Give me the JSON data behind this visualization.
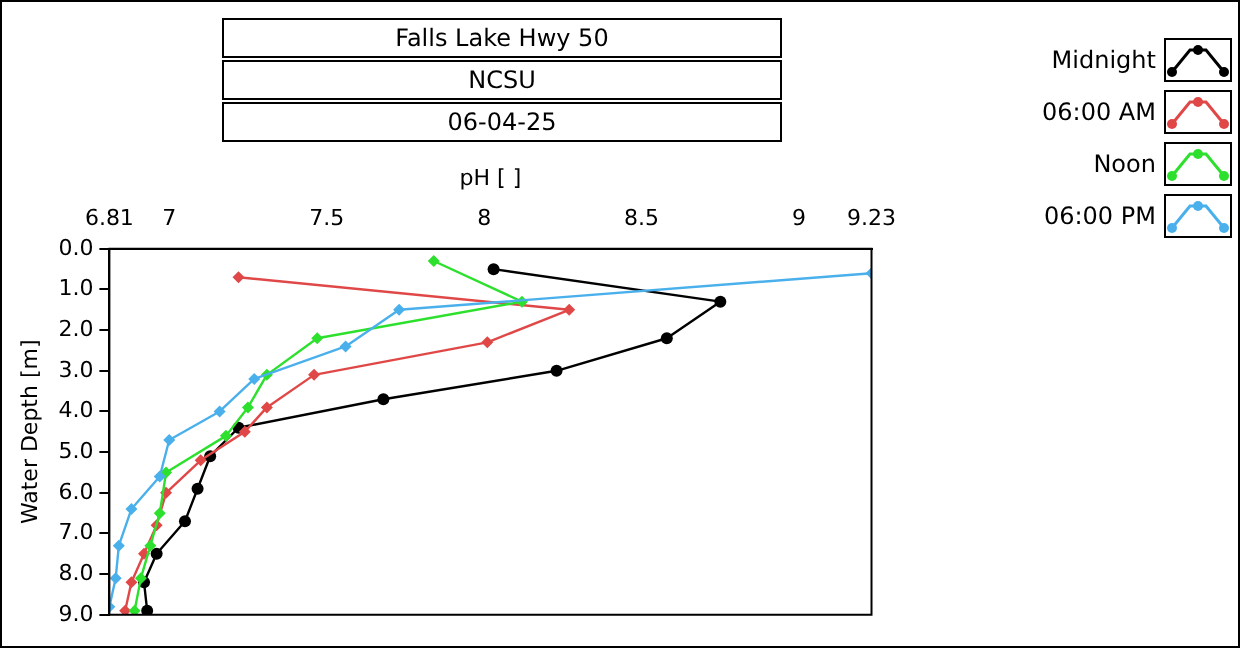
{
  "chart_data": {
    "type": "line",
    "title": "Falls Lake Hwy 50",
    "subtitle": "NCSU",
    "annotations": [
      "06-04-25"
    ],
    "xlabel": "pH [ ]",
    "ylabel": "Water Depth [m]",
    "xlim": [
      6.81,
      9.23
    ],
    "xticks": [
      6.81,
      7,
      7.5,
      8,
      8.5,
      9,
      9.23
    ],
    "ylim": [
      9,
      0
    ],
    "yticks": [
      {
        "value": 0,
        "label": "0.0"
      },
      {
        "value": 1,
        "label": "1.0"
      },
      {
        "value": 2,
        "label": "2.0"
      },
      {
        "value": 3,
        "label": "3.0"
      },
      {
        "value": 4,
        "label": "4.0"
      },
      {
        "value": 5,
        "label": "5.0"
      },
      {
        "value": 6,
        "label": "6.0"
      },
      {
        "value": 7,
        "label": "7.0"
      },
      {
        "value": 8,
        "label": "8.0"
      },
      {
        "value": 9,
        "label": "9.0"
      }
    ],
    "grid": false,
    "legend": "top right",
    "line_style": "solid",
    "series": [
      {
        "name": "Midnight",
        "color": "#000000",
        "marker": "circle",
        "x": [
          8.03,
          8.75,
          8.58,
          8.23,
          7.68,
          7.22,
          7.13,
          7.09,
          7.05,
          6.96,
          6.92,
          6.93
        ],
        "values": [
          0.5,
          1.3,
          2.2,
          3.0,
          3.7,
          4.4,
          5.1,
          5.9,
          6.7,
          7.5,
          8.2,
          8.9
        ]
      },
      {
        "name": "06:00 AM",
        "color": "#e04848",
        "marker": "diamond",
        "x": [
          7.22,
          8.27,
          8.01,
          7.46,
          7.31,
          7.24,
          7.1,
          6.99,
          6.96,
          6.92,
          6.88,
          6.86
        ],
        "values": [
          0.7,
          1.5,
          2.3,
          3.1,
          3.9,
          4.5,
          5.2,
          6.0,
          6.8,
          7.5,
          8.2,
          8.9
        ]
      },
      {
        "name": "Noon",
        "color": "#2ee02e",
        "marker": "diamond",
        "x": [
          7.84,
          8.12,
          7.47,
          7.31,
          7.25,
          7.18,
          6.99,
          6.97,
          6.94,
          6.91,
          6.89
        ],
        "values": [
          0.3,
          1.3,
          2.2,
          3.1,
          3.9,
          4.6,
          5.5,
          6.5,
          7.3,
          8.1,
          8.9
        ]
      },
      {
        "name": "06:00 PM",
        "color": "#4ab0ec",
        "marker": "diamond",
        "x": [
          9.23,
          7.73,
          7.56,
          7.27,
          7.16,
          7.0,
          6.97,
          6.88,
          6.84,
          6.83,
          6.81
        ],
        "values": [
          0.6,
          1.5,
          2.4,
          3.2,
          4.0,
          4.7,
          5.6,
          6.4,
          7.3,
          8.1,
          8.8
        ]
      }
    ]
  }
}
